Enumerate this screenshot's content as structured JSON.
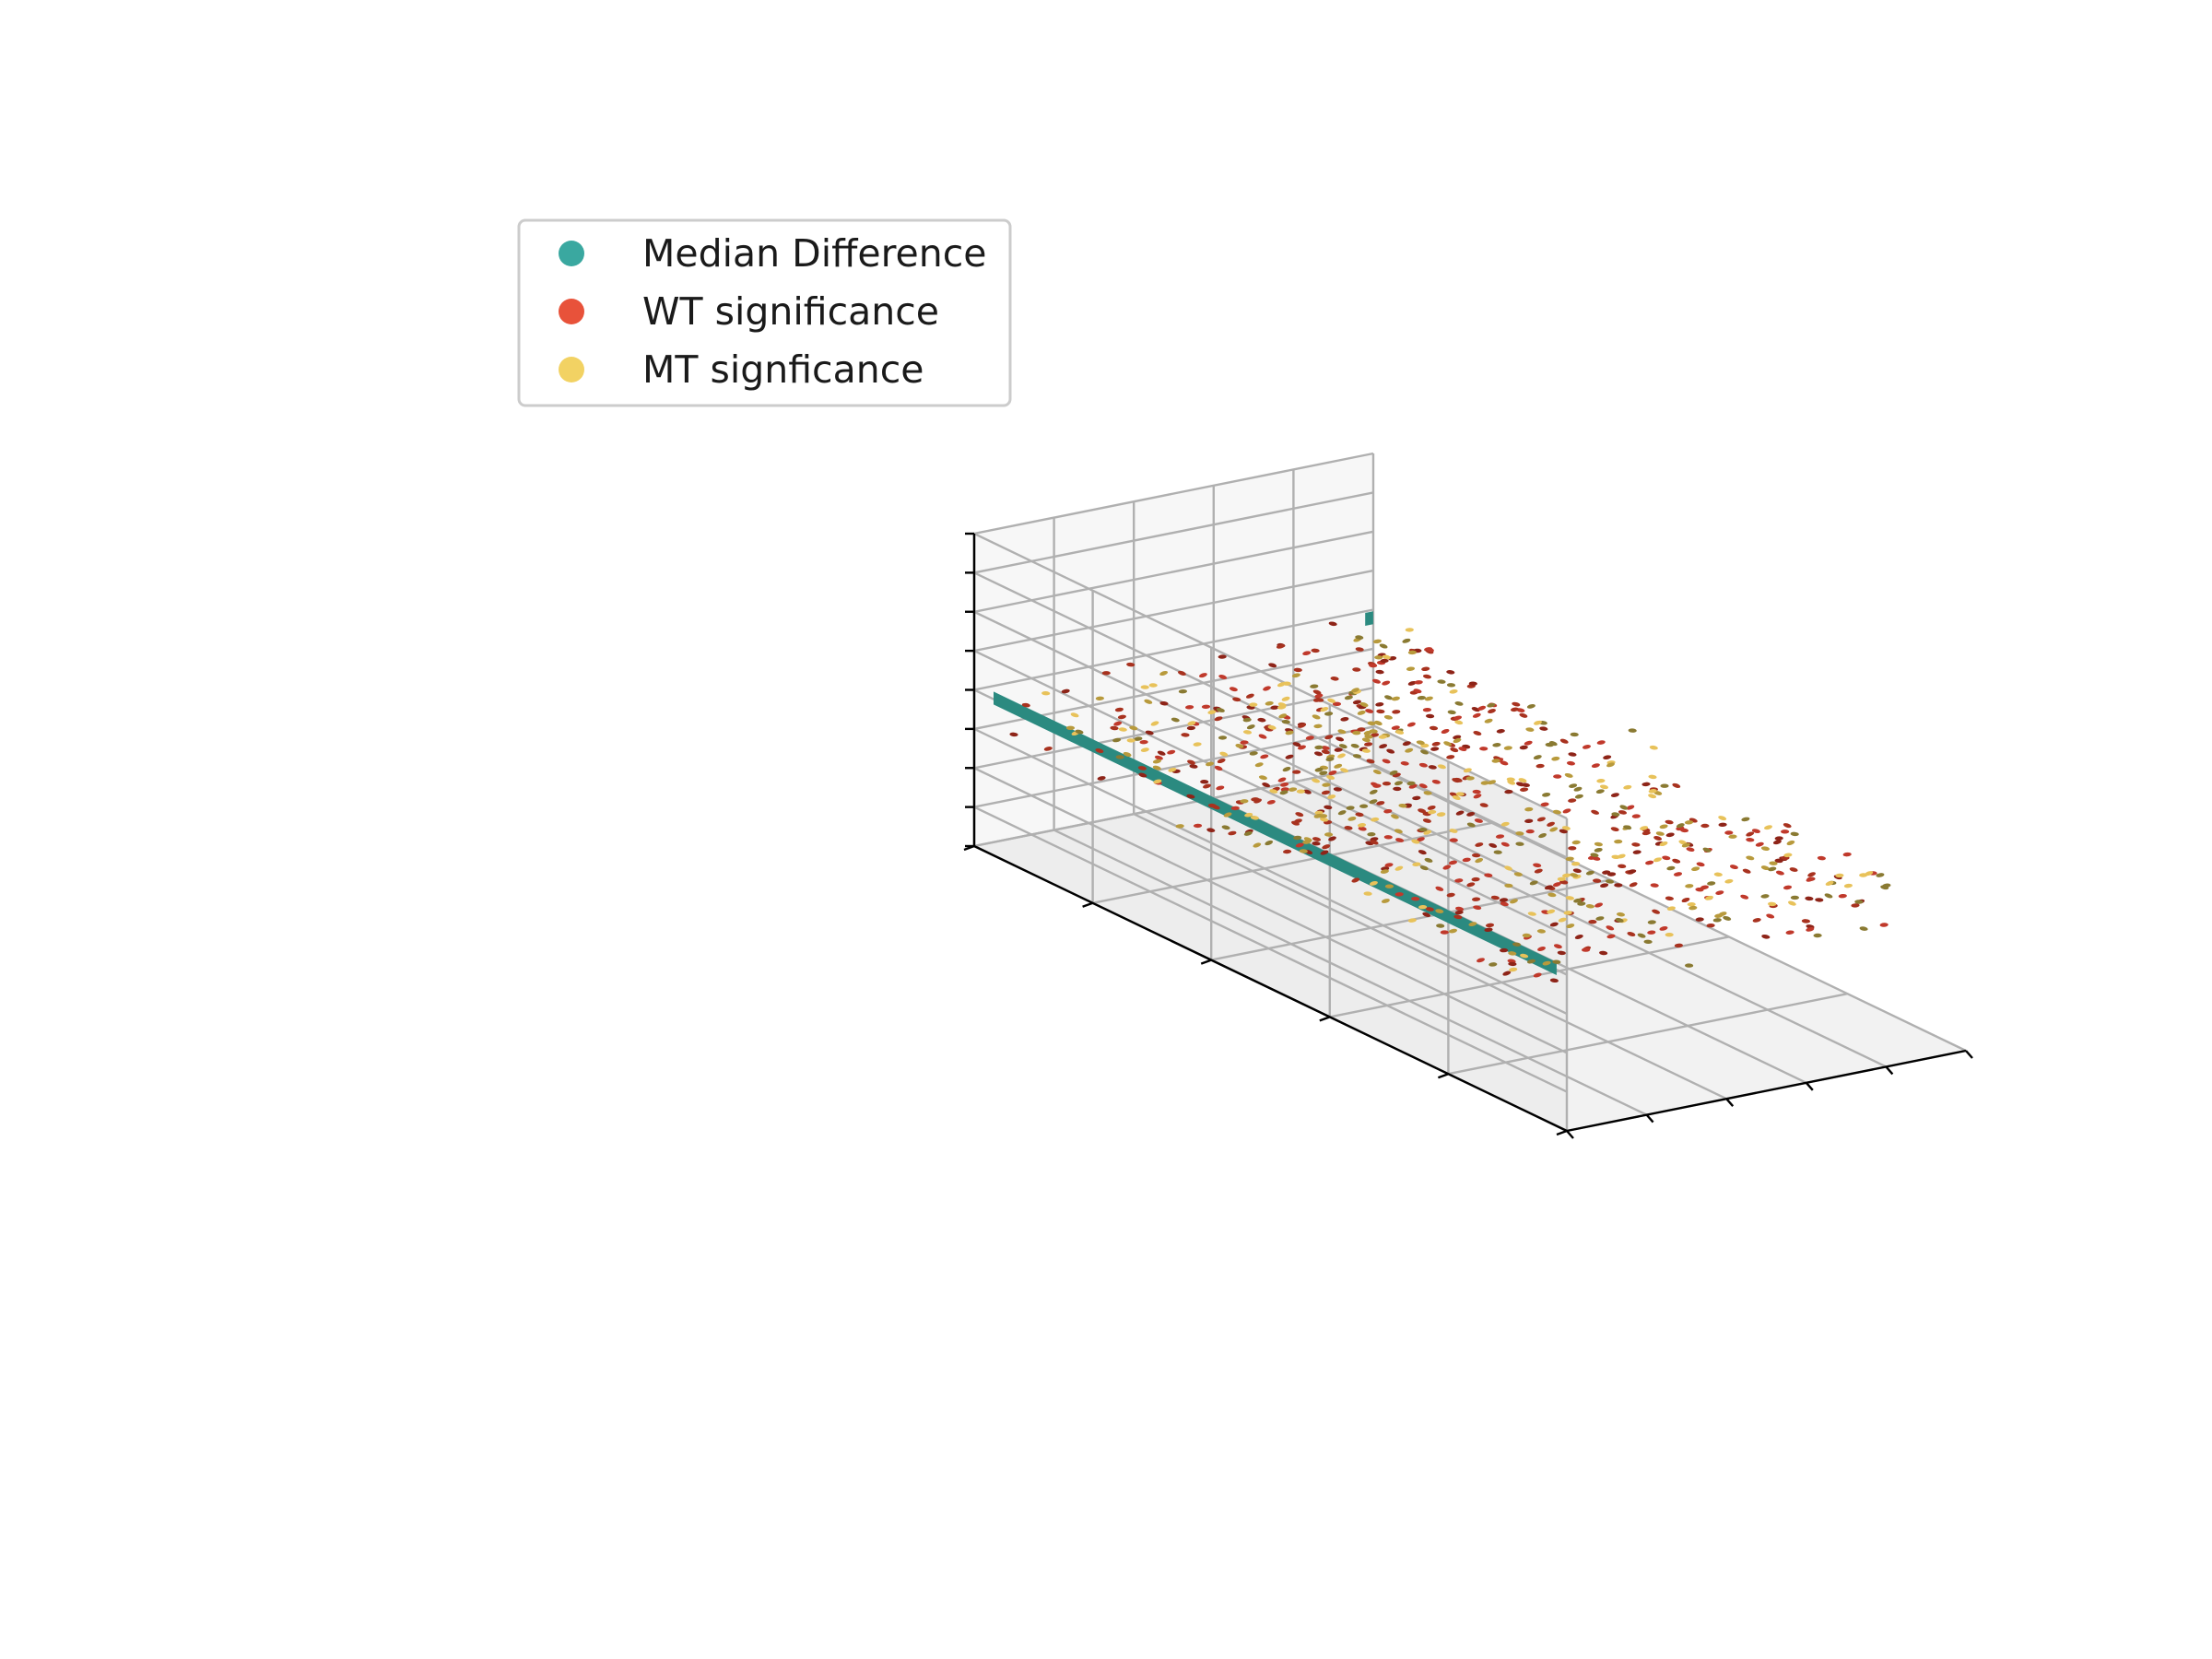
{
  "chart_data": {
    "type": "scatter",
    "projection": "3d",
    "title": "",
    "xlabel": "",
    "ylabel": "",
    "zlabel": "",
    "tick_labels_visible": false,
    "grid": true,
    "legend": {
      "placement": "upper-left",
      "entries": [
        {
          "label": "Median Difference",
          "color": "#3aa8a0"
        },
        {
          "label": "WT significance",
          "color": "#e8523a"
        },
        {
          "label": "MT signficance",
          "color": "#f2d263"
        }
      ]
    },
    "axis_ranges": {
      "x": [
        0,
        5
      ],
      "y": [
        0,
        5
      ],
      "z": [
        0,
        8
      ]
    },
    "series": [
      {
        "name": "Median Difference",
        "color": "#2b8a80",
        "kind": "ribbon",
        "segments": [
          {
            "from": [
              4.85,
              4.9,
              4.0
            ],
            "to": [
              4.75,
              4.9,
              4.0
            ]
          },
          {
            "from": [
              0.02,
              4.85,
              4.0
            ],
            "to": [
              0.02,
              0.1,
              4.0
            ]
          }
        ]
      },
      {
        "name": "WT significance",
        "colors": [
          "#c0392b",
          "#8e2418",
          "#a8321f"
        ],
        "kind": "scatter",
        "count": 420,
        "x_range": [
          0.1,
          4.8
        ],
        "y_range": [
          0.3,
          4.8
        ],
        "z_range": [
          2.8,
          4.4
        ]
      },
      {
        "name": "MT signficance",
        "colors": [
          "#e8c25a",
          "#b89a3c",
          "#8a7a32"
        ],
        "kind": "scatter",
        "count": 340,
        "x_range": [
          0.1,
          4.8
        ],
        "y_range": [
          0.3,
          4.8
        ],
        "z_range": [
          2.8,
          4.4
        ]
      }
    ]
  }
}
